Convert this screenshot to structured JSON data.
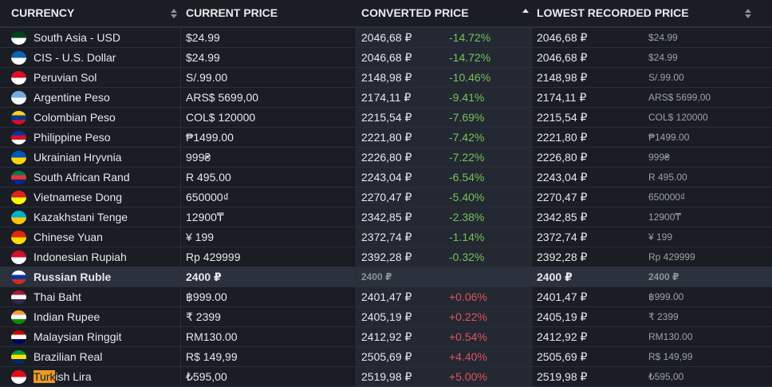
{
  "header": {
    "currency": "CURRENCY",
    "current_price": "CURRENT PRICE",
    "converted_price": "CONVERTED PRICE",
    "lowest_recorded_price": "LOWEST RECORDED PRICE"
  },
  "rows": [
    {
      "name": "South Asia - USD",
      "price": "$24.99",
      "converted": "2046,68 ₽",
      "pct": "-14.72%",
      "lowest": "2046,68 ₽",
      "lowest_price": "$24.99",
      "flag": "pk-flag-icon",
      "flag_colors": [
        "#01411c",
        "#ffffff"
      ]
    },
    {
      "name": "CIS - U.S. Dollar",
      "price": "$24.99",
      "converted": "2046,68 ₽",
      "pct": "-14.72%",
      "lowest": "2046,68 ₽",
      "lowest_price": "$24.99",
      "flag": "cis-flag-icon",
      "flag_colors": [
        "#0f61b5",
        "#ffffff"
      ]
    },
    {
      "name": "Peruvian Sol",
      "price": "S/.99.00",
      "converted": "2148,98 ₽",
      "pct": "-10.46%",
      "lowest": "2148,98 ₽",
      "lowest_price": "S/.99.00",
      "flag": "pe-flag-icon",
      "flag_colors": [
        "#d91023",
        "#ffffff"
      ]
    },
    {
      "name": "Argentine Peso",
      "price": "ARS$ 5699,00",
      "converted": "2174,11 ₽",
      "pct": "-9.41%",
      "lowest": "2174,11 ₽",
      "lowest_price": "ARS$ 5699,00",
      "flag": "ar-flag-icon",
      "flag_colors": [
        "#74acdf",
        "#ffffff"
      ]
    },
    {
      "name": "Colombian Peso",
      "price": "COL$ 120000",
      "converted": "2215,54 ₽",
      "pct": "-7.69%",
      "lowest": "2215,54 ₽",
      "lowest_price": "COL$ 120000",
      "flag": "co-flag-icon",
      "flag_colors": [
        "#fcd116",
        "#003893",
        "#ce1126"
      ]
    },
    {
      "name": "Philippine Peso",
      "price": "₱1499.00",
      "converted": "2221,80 ₽",
      "pct": "-7.42%",
      "lowest": "2221,80 ₽",
      "lowest_price": "₱1499.00",
      "flag": "ph-flag-icon",
      "flag_colors": [
        "#0038a8",
        "#ce1126",
        "#ffffff"
      ]
    },
    {
      "name": "Ukrainian Hryvnia",
      "price": "999₴",
      "converted": "2226,80 ₽",
      "pct": "-7.22%",
      "lowest": "2226,80 ₽",
      "lowest_price": "999₴",
      "flag": "ua-flag-icon",
      "flag_colors": [
        "#0057b7",
        "#ffd700"
      ]
    },
    {
      "name": "South African Rand",
      "price": "R 495.00",
      "converted": "2243,04 ₽",
      "pct": "-6.54%",
      "lowest": "2243,04 ₽",
      "lowest_price": "R 495.00",
      "flag": "za-flag-icon",
      "flag_colors": [
        "#007a4d",
        "#de3831",
        "#002395"
      ]
    },
    {
      "name": "Vietnamese Dong",
      "price": "650000₫",
      "converted": "2270,47 ₽",
      "pct": "-5.40%",
      "lowest": "2270,47 ₽",
      "lowest_price": "650000₫",
      "flag": "vn-flag-icon",
      "flag_colors": [
        "#da251d",
        "#ffff00"
      ]
    },
    {
      "name": "Kazakhstani Tenge",
      "price": "12900₸",
      "converted": "2342,85 ₽",
      "pct": "-2.38%",
      "lowest": "2342,85 ₽",
      "lowest_price": "12900₸",
      "flag": "kz-flag-icon",
      "flag_colors": [
        "#00afca",
        "#fec50c"
      ]
    },
    {
      "name": "Chinese Yuan",
      "price": "¥ 199",
      "converted": "2372,74 ₽",
      "pct": "-1.14%",
      "lowest": "2372,74 ₽",
      "lowest_price": "¥ 199",
      "flag": "cn-flag-icon",
      "flag_colors": [
        "#de2910",
        "#ffde00"
      ]
    },
    {
      "name": "Indonesian Rupiah",
      "price": "Rp 429999",
      "converted": "2392,28 ₽",
      "pct": "-0.32%",
      "lowest": "2392,28 ₽",
      "lowest_price": "Rp 429999",
      "flag": "id-flag-icon",
      "flag_colors": [
        "#ce1126",
        "#ffffff"
      ]
    },
    {
      "name": "Russian Ruble",
      "price": "2400 ₽",
      "converted": "2400 ₽",
      "pct": "",
      "lowest": "2400 ₽",
      "lowest_price": "2400 ₽",
      "flag": "ru-flag-icon",
      "flag_colors": [
        "#ffffff",
        "#0039a6",
        "#d52b1e"
      ],
      "highlight": true
    },
    {
      "name": "Thai Baht",
      "price": "฿999.00",
      "converted": "2401,47 ₽",
      "pct": "+0.06%",
      "lowest": "2401,47 ₽",
      "lowest_price": "฿999.00",
      "flag": "th-flag-icon",
      "flag_colors": [
        "#a51931",
        "#f4f5f8",
        "#2d2a4a"
      ]
    },
    {
      "name": "Indian Rupee",
      "price": "₹ 2399",
      "converted": "2405,19 ₽",
      "pct": "+0.22%",
      "lowest": "2405,19 ₽",
      "lowest_price": "₹ 2399",
      "flag": "in-flag-icon",
      "flag_colors": [
        "#ff9933",
        "#ffffff",
        "#138808"
      ]
    },
    {
      "name": "Malaysian Ringgit",
      "price": "RM130.00",
      "converted": "2412,92 ₽",
      "pct": "+0.54%",
      "lowest": "2412,92 ₽",
      "lowest_price": "RM130.00",
      "flag": "my-flag-icon",
      "flag_colors": [
        "#cc0001",
        "#ffffff",
        "#010066"
      ]
    },
    {
      "name": "Brazilian Real",
      "price": "R$ 149,99",
      "converted": "2505,69 ₽",
      "pct": "+4.40%",
      "lowest": "2505,69 ₽",
      "lowest_price": "R$ 149,99",
      "flag": "br-flag-icon",
      "flag_colors": [
        "#009c3b",
        "#ffdf00",
        "#002776"
      ]
    },
    {
      "name": "Turkish Lira",
      "price": "₺595,00",
      "converted": "2519,98 ₽",
      "pct": "+5.00%",
      "lowest": "2519,98 ₽",
      "lowest_price": "₺595,00",
      "flag": "tr-flag-icon",
      "flag_colors": [
        "#e30a17",
        "#ffffff"
      ],
      "name_highlight": "Turk",
      "name_rest": "ish Lira"
    }
  ],
  "colors": {
    "negative": "#78c257",
    "positive": "#e0545a",
    "highlight_row": "#2b313d",
    "search_highlight": "#ee9a27"
  }
}
